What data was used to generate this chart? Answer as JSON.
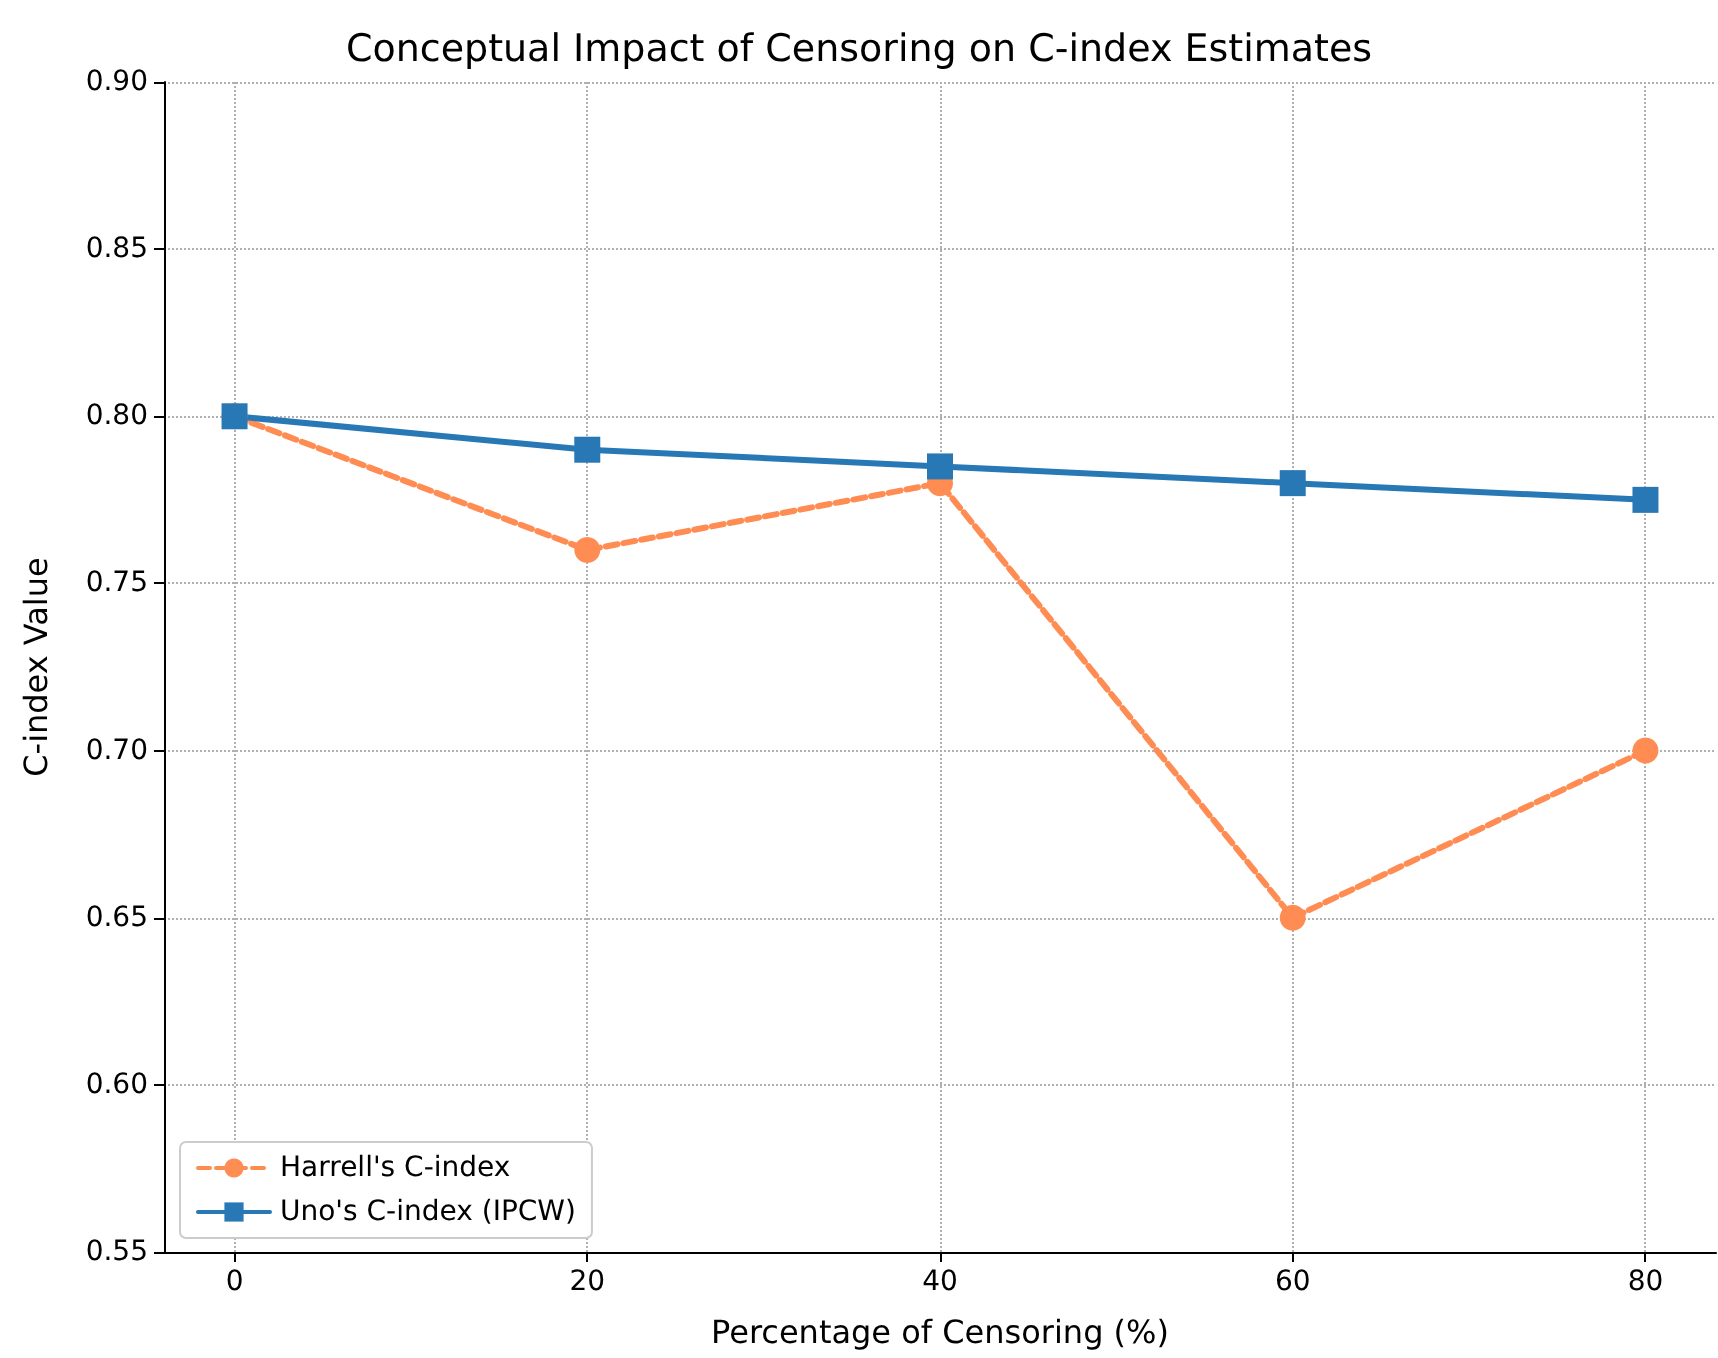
{
  "chart_data": {
    "type": "line",
    "title": "Conceptual Impact of Censoring on C-index Estimates",
    "xlabel": "Percentage of Censoring (%)",
    "ylabel": "C-index Value",
    "x": [
      0,
      20,
      40,
      60,
      80
    ],
    "series": [
      {
        "name": "Harrell's C-index",
        "color": "#ff8c52",
        "values": [
          0.8,
          0.76,
          0.78,
          0.65,
          0.7
        ],
        "marker": "circle",
        "line_style": "dashed"
      },
      {
        "name": "Uno's C-index (IPCW)",
        "color": "#2878b5",
        "values": [
          0.8,
          0.79,
          0.785,
          0.78,
          0.775
        ],
        "marker": "square",
        "line_style": "solid"
      }
    ],
    "xlim": [
      -4,
      84
    ],
    "xticks": [
      0,
      20,
      40,
      60,
      80
    ],
    "ylim": [
      0.55,
      0.9
    ],
    "yticks": [
      {
        "value": 0.55,
        "label": "0.55"
      },
      {
        "value": 0.6,
        "label": "0.60"
      },
      {
        "value": 0.65,
        "label": "0.65"
      },
      {
        "value": 0.7,
        "label": "0.70"
      },
      {
        "value": 0.75,
        "label": "0.75"
      },
      {
        "value": 0.8,
        "label": "0.80"
      },
      {
        "value": 0.85,
        "label": "0.85"
      },
      {
        "value": 0.9,
        "label": "0.90"
      }
    ],
    "grid": true,
    "legend": "bottom left"
  }
}
